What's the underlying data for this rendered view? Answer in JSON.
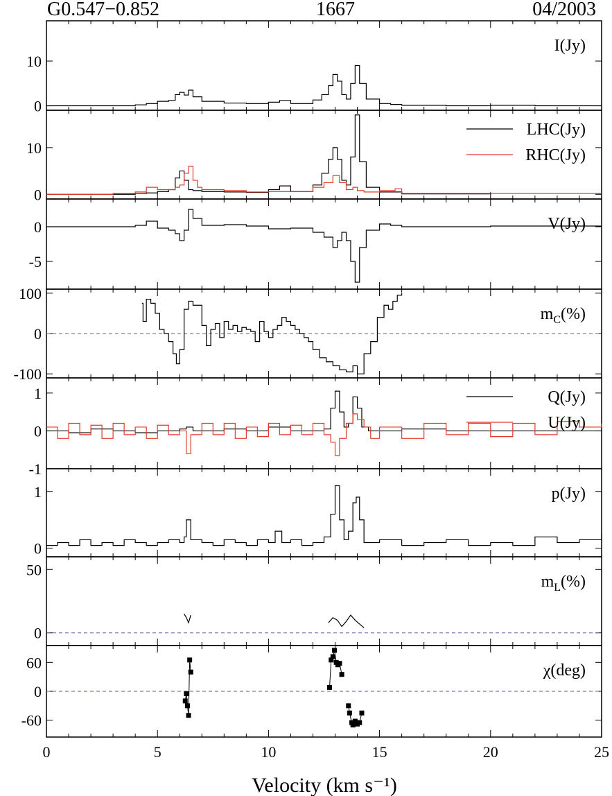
{
  "header": {
    "source": "G0.547−0.852",
    "frequency": "1667",
    "date": "04/2003"
  },
  "colors": {
    "primary_series": "#000000",
    "secondary_series": "#e03a2a",
    "zero_line": "#5b5bb0"
  },
  "chart_data": [
    {
      "type": "line",
      "ylabel": "I(Jy)",
      "ylim": [
        -1,
        19
      ],
      "yticks": [
        0,
        10
      ],
      "ytick_labels": [
        "0",
        "10"
      ],
      "xlim": [
        0,
        25
      ],
      "series": [
        {
          "name": "I(Jy)",
          "color": "#000000",
          "x": [
            0,
            1,
            2,
            3,
            4,
            4.5,
            5,
            5.5,
            5.8,
            6.0,
            6.2,
            6.4,
            6.6,
            7,
            8,
            9,
            10,
            10.5,
            11,
            12,
            12.4,
            12.7,
            12.9,
            13.1,
            13.3,
            13.5,
            13.7,
            13.9,
            14.1,
            14.4,
            15,
            15.5,
            16,
            18,
            20,
            22,
            25
          ],
          "y": [
            0,
            0,
            0,
            0,
            0.2,
            0.5,
            1.0,
            1.2,
            2.5,
            3.0,
            2.4,
            3.5,
            2.0,
            1.0,
            0.6,
            0.5,
            0.8,
            1.2,
            0.5,
            1.3,
            2.5,
            4.5,
            7.0,
            5.5,
            2.5,
            1.5,
            5.0,
            9.0,
            5.0,
            1.5,
            0.5,
            0.3,
            0.1,
            0,
            0.1,
            0,
            0
          ]
        }
      ]
    },
    {
      "type": "line",
      "ylabel": "",
      "ylim": [
        -1,
        18
      ],
      "yticks": [
        0,
        10
      ],
      "ytick_labels": [
        "0",
        "10"
      ],
      "xlim": [
        0,
        25
      ],
      "series": [
        {
          "name": "LHC(Jy)",
          "color": "#000000",
          "x": [
            0,
            2,
            3,
            4,
            4.5,
            5,
            5.5,
            5.8,
            6.0,
            6.2,
            6.4,
            6.6,
            7,
            8,
            9,
            10,
            10.5,
            11,
            12,
            12.4,
            12.7,
            12.9,
            13.1,
            13.3,
            13.5,
            13.7,
            13.9,
            14.1,
            14.4,
            15,
            16,
            20,
            25
          ],
          "y": [
            0,
            0,
            0,
            0.2,
            0.3,
            0.6,
            1.0,
            3.5,
            5.0,
            3.0,
            1.0,
            0.8,
            0.6,
            0.5,
            0.4,
            1.0,
            1.8,
            0.6,
            2.0,
            4.5,
            7.5,
            10.0,
            7.5,
            3.0,
            2.0,
            8.0,
            17.0,
            7.0,
            1.5,
            0.5,
            0.1,
            0.2,
            0
          ]
        },
        {
          "name": "RHC(Jy)",
          "color": "#e03a2a",
          "x": [
            0,
            2,
            3,
            4,
            4.5,
            5,
            5.5,
            5.8,
            6.0,
            6.2,
            6.4,
            6.6,
            6.8,
            7,
            8,
            9,
            10,
            11,
            12,
            12.5,
            12.9,
            13.2,
            13.5,
            13.8,
            14.0,
            14.3,
            15,
            15.7,
            16,
            20,
            25
          ],
          "y": [
            0,
            0,
            0.2,
            0.5,
            1.5,
            1.0,
            1.0,
            1.5,
            2.0,
            4.5,
            6.0,
            3.0,
            1.5,
            1.0,
            0.8,
            0.5,
            0.6,
            0.6,
            1.5,
            2.5,
            4.0,
            2.5,
            1.0,
            1.5,
            0.8,
            0.5,
            0.8,
            1.2,
            0.2,
            0.2,
            0.2
          ]
        }
      ]
    },
    {
      "type": "line",
      "ylabel": "V(Jy)",
      "ylim": [
        -9,
        4
      ],
      "yticks": [
        -5,
        0
      ],
      "ytick_labels": [
        "-5",
        "0"
      ],
      "xlim": [
        0,
        25
      ],
      "series": [
        {
          "name": "V(Jy)",
          "color": "#000000",
          "x": [
            0,
            2,
            3,
            4,
            4.5,
            5,
            5.5,
            5.8,
            6.0,
            6.2,
            6.4,
            6.6,
            7,
            8,
            9,
            10,
            11,
            12,
            12.5,
            12.9,
            13.1,
            13.3,
            13.5,
            13.7,
            13.9,
            14.1,
            14.4,
            15,
            15.5,
            16,
            20,
            25
          ],
          "y": [
            0,
            0,
            0,
            0.2,
            0.8,
            -0.2,
            -0.5,
            -1.0,
            -2.0,
            -0.5,
            2.5,
            1.2,
            0.2,
            0.3,
            0.1,
            -0.3,
            -0.2,
            -0.8,
            -1.5,
            -3.0,
            -2.0,
            -0.8,
            -2.0,
            -5.0,
            -8.0,
            -3.0,
            -0.5,
            0.4,
            0.2,
            0,
            0.1,
            0
          ]
        }
      ]
    },
    {
      "type": "line",
      "ylabel": "m_C(%)",
      "ylim": [
        -110,
        110
      ],
      "yticks": [
        -100,
        0,
        100
      ],
      "ytick_labels": [
        "-100",
        "0",
        "100"
      ],
      "xlim": [
        0,
        25
      ],
      "zero_line": true,
      "series": [
        {
          "name": "m_C(%)",
          "color": "#000000",
          "x": [
            4.3,
            4.35,
            4.5,
            4.7,
            4.9,
            5.1,
            5.3,
            5.5,
            5.7,
            5.85,
            6.0,
            6.2,
            6.4,
            6.6,
            6.8,
            7.0,
            7.2,
            7.4,
            7.6,
            7.8,
            8.0,
            8.2,
            8.4,
            8.6,
            8.8,
            9.0,
            9.2,
            9.4,
            9.6,
            9.8,
            10.0,
            10.2,
            10.4,
            10.6,
            10.8,
            11.0,
            11.2,
            11.4,
            11.6,
            11.8,
            12.0,
            12.3,
            12.6,
            12.9,
            13.2,
            13.5,
            13.8,
            14.0,
            14.3,
            14.6,
            14.9,
            15.2,
            15.4,
            15.6,
            15.8,
            16.0
          ],
          "y": [
            75,
            30,
            85,
            75,
            50,
            10,
            0,
            -20,
            -50,
            -75,
            -40,
            60,
            80,
            70,
            70,
            20,
            -30,
            10,
            25,
            -10,
            30,
            10,
            20,
            5,
            15,
            10,
            5,
            -20,
            30,
            5,
            -10,
            10,
            20,
            40,
            30,
            20,
            10,
            0,
            -10,
            -20,
            -40,
            -60,
            -70,
            -80,
            -90,
            -95,
            -80,
            -100,
            -50,
            -20,
            40,
            70,
            60,
            80,
            95,
            100
          ]
        }
      ]
    },
    {
      "type": "line",
      "ylabel": "",
      "ylim": [
        -1,
        1.4
      ],
      "yticks": [
        -1,
        0,
        1
      ],
      "ytick_labels": [
        "-1",
        "0",
        "1"
      ],
      "xlim": [
        0,
        25
      ],
      "series": [
        {
          "name": "Q(Jy)",
          "color": "#000000",
          "x": [
            0,
            1,
            2,
            3,
            4,
            5,
            6,
            6.3,
            6.6,
            7,
            8,
            9,
            10,
            11,
            12,
            12.5,
            12.8,
            13.0,
            13.2,
            13.4,
            13.6,
            13.8,
            14.0,
            14.2,
            14.5,
            15,
            16,
            18,
            20,
            22,
            25
          ],
          "y": [
            0,
            -0.05,
            0.05,
            0,
            -0.05,
            0,
            0.05,
            0.1,
            0,
            0,
            0.05,
            0,
            0.1,
            0,
            0,
            0.05,
            0.6,
            1.05,
            0.5,
            0.1,
            0.2,
            0.9,
            0.6,
            0.1,
            0,
            0,
            0.05,
            0,
            0,
            0,
            0
          ]
        },
        {
          "name": "U(Jy)",
          "color": "#e03a2a",
          "x": [
            0,
            0.5,
            1,
            1.5,
            2,
            2.5,
            3,
            3.5,
            4,
            4.5,
            5,
            5.5,
            6,
            6.3,
            6.5,
            7,
            7.5,
            8,
            8.5,
            9,
            9.5,
            10,
            10.5,
            11,
            11.5,
            12,
            12.5,
            12.8,
            13.0,
            13.2,
            13.5,
            13.8,
            14.0,
            14.3,
            14.6,
            15,
            16,
            17,
            18,
            19,
            20,
            21,
            22,
            23,
            24,
            25
          ],
          "y": [
            0.1,
            -0.2,
            0.2,
            -0.1,
            0.15,
            -0.2,
            0.2,
            -0.1,
            0.1,
            -0.2,
            0.15,
            -0.1,
            0,
            -0.6,
            -0.1,
            0.2,
            -0.1,
            0.2,
            -0.2,
            0.1,
            -0.15,
            0.2,
            -0.1,
            0.15,
            -0.1,
            0.2,
            -0.1,
            -0.3,
            -0.65,
            -0.2,
            0.2,
            0.45,
            0.3,
            0.1,
            -0.2,
            0.1,
            -0.2,
            0.2,
            -0.1,
            0.2,
            -0.15,
            0.2,
            -0.1,
            0.25,
            0.1,
            0.2
          ]
        }
      ]
    },
    {
      "type": "line",
      "ylabel": "p(Jy)",
      "ylim": [
        -0.15,
        1.4
      ],
      "yticks": [
        0,
        1
      ],
      "ytick_labels": [
        "0",
        "1"
      ],
      "xlim": [
        0,
        25
      ],
      "series": [
        {
          "name": "p(Jy)",
          "color": "#000000",
          "x": [
            0,
            0.5,
            1,
            1.5,
            2,
            2.5,
            3,
            3.5,
            4,
            4.5,
            5,
            5.5,
            6,
            6.2,
            6.3,
            6.5,
            7,
            7.5,
            8,
            8.5,
            9,
            9.5,
            10,
            10.3,
            10.6,
            11,
            11.5,
            12,
            12.5,
            12.8,
            13.0,
            13.2,
            13.4,
            13.6,
            13.8,
            13.95,
            14.1,
            14.3,
            14.6,
            15,
            16,
            17,
            18,
            19,
            20,
            21,
            22,
            23,
            24,
            25
          ],
          "y": [
            0.05,
            0.1,
            0.05,
            0.15,
            0.05,
            0.1,
            0.05,
            0.15,
            0.1,
            0.05,
            0.1,
            0.15,
            0.1,
            0.2,
            0.5,
            0.15,
            0.1,
            0.05,
            0.15,
            0.1,
            0.05,
            0.15,
            0.1,
            0.3,
            0.1,
            0.15,
            0.05,
            0.1,
            0.2,
            0.6,
            1.1,
            0.5,
            0.15,
            0.3,
            0.8,
            0.9,
            0.5,
            0.1,
            0.1,
            0.15,
            0.05,
            0.1,
            0.15,
            0.05,
            0.1,
            0.05,
            0.2,
            0.1,
            0.15,
            0.25
          ]
        }
      ]
    },
    {
      "type": "line",
      "ylabel": "m_L(%)",
      "ylim": [
        -10,
        60
      ],
      "yticks": [
        0,
        50
      ],
      "ytick_labels": [
        "0",
        "50"
      ],
      "xlim": [
        0,
        25
      ],
      "zero_line": true,
      "series": [
        {
          "name": "m_L(%)",
          "color": "#000000",
          "segments": [
            {
              "x": [
                6.2,
                6.3,
                6.4,
                6.5
              ],
              "y": [
                15,
                12,
                8,
                14
              ]
            },
            {
              "x": [
                12.7,
                12.9,
                13.1,
                13.3,
                13.5,
                13.7,
                13.9,
                14.1,
                14.3
              ],
              "y": [
                8,
                12,
                10,
                5,
                9,
                14,
                10,
                7,
                4
              ]
            }
          ]
        }
      ]
    },
    {
      "type": "scatter",
      "ylabel": "χ(deg)",
      "ylim": [
        -95,
        95
      ],
      "yticks": [
        -60,
        0,
        60
      ],
      "ytick_labels": [
        "-60",
        "0",
        "60"
      ],
      "xlim": [
        0,
        25
      ],
      "xticks": [
        0,
        5,
        10,
        15,
        20,
        25
      ],
      "xtick_labels": [
        "0",
        "5",
        "10",
        "15",
        "20",
        "25"
      ],
      "xlabel": "Velocity (km s⁻¹)",
      "zero_line": true,
      "series": [
        {
          "name": "χ(deg)",
          "color": "#000000",
          "groups": [
            {
              "x": [
                6.25,
                6.3,
                6.35,
                6.4,
                6.45,
                6.5
              ],
              "y": [
                -20,
                -5,
                -30,
                -50,
                65,
                40
              ]
            },
            {
              "x": [
                12.75,
                12.82,
                12.9,
                12.97,
                13.05,
                13.12,
                13.2,
                13.3
              ],
              "y": [
                8,
                65,
                72,
                85,
                60,
                55,
                58,
                35
              ]
            },
            {
              "x": [
                13.6,
                13.65,
                13.75,
                13.8,
                13.9,
                14.0,
                14.1,
                14.2
              ],
              "y": [
                -30,
                -45,
                -65,
                -70,
                -62,
                -68,
                -65,
                -45
              ]
            }
          ]
        }
      ]
    }
  ]
}
